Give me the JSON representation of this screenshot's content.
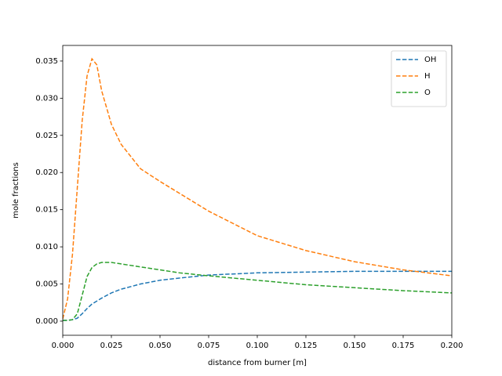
{
  "chart_data": {
    "type": "line",
    "x_label": "distance from burner [m]",
    "y_label": "mole fractions",
    "x": [
      0,
      0.0025,
      0.005,
      0.0075,
      0.01,
      0.0125,
      0.015,
      0.0175,
      0.02,
      0.025,
      0.03,
      0.04,
      0.05,
      0.06,
      0.075,
      0.1,
      0.125,
      0.15,
      0.175,
      0.2
    ],
    "series": [
      {
        "name": "OH",
        "color": "#1f77b4",
        "values": [
          0.0001,
          0.0001,
          0.0002,
          0.0004,
          0.001,
          0.0017,
          0.0023,
          0.0027,
          0.0031,
          0.0038,
          0.0043,
          0.005,
          0.0055,
          0.0058,
          0.0062,
          0.0065,
          0.0066,
          0.0067,
          0.0067,
          0.0067
        ]
      },
      {
        "name": "H",
        "color": "#ff7f0e",
        "values": [
          0.0003,
          0.003,
          0.009,
          0.018,
          0.027,
          0.033,
          0.0353,
          0.0345,
          0.031,
          0.0265,
          0.0238,
          0.0205,
          0.0188,
          0.0172,
          0.0148,
          0.0115,
          0.0095,
          0.008,
          0.0069,
          0.0061
        ]
      },
      {
        "name": "O",
        "color": "#2ca02c",
        "values": [
          0.0001,
          0.0001,
          0.0002,
          0.001,
          0.0035,
          0.006,
          0.0072,
          0.0077,
          0.0079,
          0.0079,
          0.0077,
          0.0073,
          0.0069,
          0.0065,
          0.0061,
          0.0055,
          0.0049,
          0.0045,
          0.0041,
          0.0038
        ]
      }
    ],
    "xlim": [
      0,
      0.2
    ],
    "ylim": [
      -0.0019,
      0.0371
    ],
    "xticks": [
      {
        "value": 0,
        "label": "0.000"
      },
      {
        "value": 0.025,
        "label": "0.025"
      },
      {
        "value": 0.05,
        "label": "0.050"
      },
      {
        "value": 0.075,
        "label": "0.075"
      },
      {
        "value": 0.1,
        "label": "0.100"
      },
      {
        "value": 0.125,
        "label": "0.125"
      },
      {
        "value": 0.15,
        "label": "0.150"
      },
      {
        "value": 0.175,
        "label": "0.175"
      },
      {
        "value": 0.2,
        "label": "0.200"
      }
    ],
    "yticks": [
      {
        "value": 0,
        "label": "0.000"
      },
      {
        "value": 0.005,
        "label": "0.005"
      },
      {
        "value": 0.01,
        "label": "0.010"
      },
      {
        "value": 0.015,
        "label": "0.015"
      },
      {
        "value": 0.02,
        "label": "0.020"
      },
      {
        "value": 0.025,
        "label": "0.025"
      },
      {
        "value": 0.03,
        "label": "0.030"
      },
      {
        "value": 0.035,
        "label": "0.035"
      }
    ],
    "legend": "upper right",
    "dashed": true,
    "grid": false
  }
}
